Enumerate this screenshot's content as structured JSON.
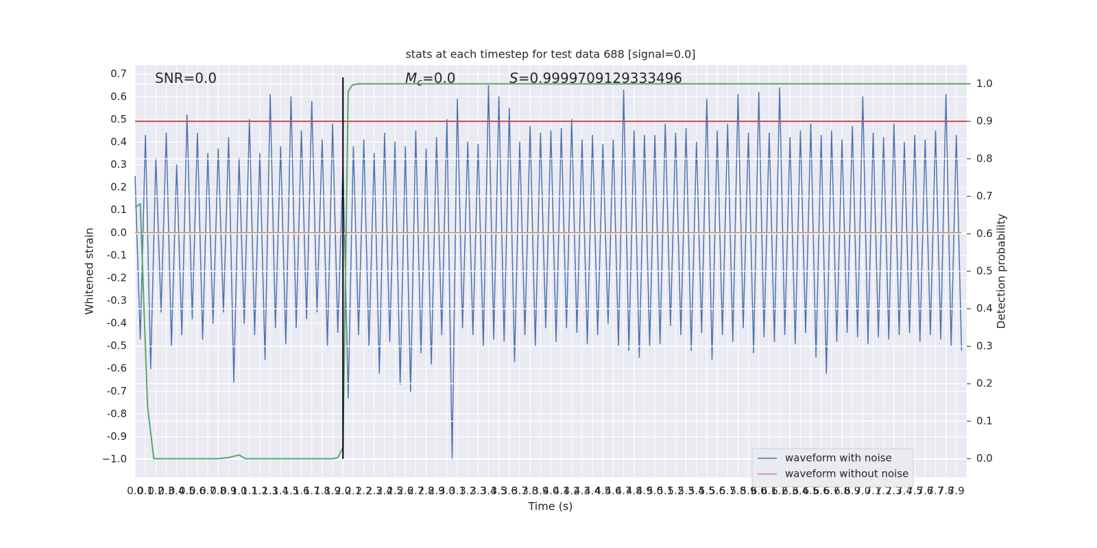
{
  "chart_data": {
    "type": "line",
    "title": "stats at each timestep for test data 688 [signal=0.0]",
    "xlabel": "Time (s)",
    "ylabel": "Whitened strain",
    "y2label": "Detection probability",
    "annotations": [
      {
        "text": "SNR=0.0"
      },
      {
        "symbol": "M",
        "subscript": "c",
        "text": "=0.0"
      },
      {
        "symbol": "S",
        "text": "=0.9999709129333496"
      }
    ],
    "xlim": [
      0,
      8.0
    ],
    "ylim": [
      -1.08,
      0.74
    ],
    "y2lim": [
      -0.05,
      1.05
    ],
    "grid": true,
    "legend": "lower right",
    "xticks": [
      {
        "value": 0,
        "label": "0.0"
      },
      0.1,
      0.2,
      0.3,
      0.4,
      0.5,
      0.6,
      0.7,
      0.8,
      0.9,
      {
        "value": 1,
        "label": "1.0"
      },
      1.1,
      1.2,
      1.3,
      1.4,
      1.5,
      1.6,
      1.7,
      1.8,
      1.9,
      {
        "value": 2,
        "label": "2.0"
      },
      2.1,
      2.2,
      2.3,
      2.4,
      2.5,
      2.6,
      2.7,
      2.8,
      2.9,
      {
        "value": 3,
        "label": "3.0"
      },
      3.1,
      3.2,
      3.3,
      3.4,
      3.5,
      3.6,
      3.7,
      3.8,
      3.9,
      {
        "value": 4,
        "label": "4.0"
      },
      4.1,
      4.2,
      4.3,
      4.4,
      4.5,
      4.6,
      4.7,
      4.8,
      4.9,
      {
        "value": 5,
        "label": "5.0"
      },
      5.1,
      5.2,
      5.3,
      5.4,
      5.5,
      5.6,
      5.7,
      5.8,
      5.9,
      {
        "value": 6,
        "label": "6.0"
      },
      6.1,
      6.2,
      6.3,
      6.4,
      6.5,
      6.6,
      6.7,
      6.8,
      6.9,
      {
        "value": 7,
        "label": "7.0"
      },
      7.1,
      7.2,
      7.3,
      7.4,
      7.5,
      7.6,
      7.7,
      7.8,
      7.9
    ],
    "yticks": [
      0.7,
      0.6,
      0.5,
      0.4,
      0.3,
      0.2,
      0.1,
      {
        "value": 0,
        "label": "0.0"
      },
      -0.1,
      -0.2,
      -0.3,
      -0.4,
      -0.5,
      -0.6,
      -0.7,
      -0.8,
      -0.9,
      {
        "value": -1,
        "label": "−1.0"
      }
    ],
    "y2ticks": [
      {
        "value": 1,
        "label": "1.0"
      },
      0.9,
      0.8,
      0.7,
      0.6,
      0.5,
      0.4,
      0.3,
      0.2,
      0.1,
      {
        "value": 0,
        "label": "0.0"
      }
    ],
    "hlines": [
      {
        "value": 0.9,
        "axis": "y2",
        "color": "#c44e52"
      }
    ],
    "vlines": [
      {
        "value": 2.0,
        "color": "#000000"
      }
    ],
    "series": [
      {
        "name": "waveform with noise",
        "color": "#4c72b0",
        "x": [
          0,
          0.05,
          0.1,
          0.15,
          0.2,
          0.25,
          0.3,
          0.35,
          0.4,
          0.45,
          0.5,
          0.55,
          0.6,
          0.65,
          0.7,
          0.75,
          0.8,
          0.85,
          0.9,
          0.95,
          1,
          1.05,
          1.1,
          1.15,
          1.2,
          1.25,
          1.3,
          1.35,
          1.4,
          1.45,
          1.5,
          1.55,
          1.6,
          1.65,
          1.7,
          1.75,
          1.8,
          1.85,
          1.9,
          1.95,
          2,
          2.05,
          2.1,
          2.15,
          2.2,
          2.25,
          2.3,
          2.35,
          2.4,
          2.45,
          2.5,
          2.55,
          2.6,
          2.65,
          2.7,
          2.75,
          2.8,
          2.85,
          2.9,
          2.95,
          3,
          3.05,
          3.1,
          3.15,
          3.2,
          3.25,
          3.3,
          3.35,
          3.4,
          3.45,
          3.5,
          3.55,
          3.6,
          3.65,
          3.7,
          3.75,
          3.8,
          3.85,
          3.9,
          3.95,
          4,
          4.05,
          4.1,
          4.15,
          4.2,
          4.25,
          4.3,
          4.35,
          4.4,
          4.45,
          4.5,
          4.55,
          4.6,
          4.65,
          4.7,
          4.75,
          4.8,
          4.85,
          4.9,
          4.95,
          5,
          5.05,
          5.1,
          5.15,
          5.2,
          5.25,
          5.3,
          5.35,
          5.4,
          5.45,
          5.5,
          5.55,
          5.6,
          5.65,
          5.7,
          5.75,
          5.8,
          5.85,
          5.9,
          5.95,
          6,
          6.05,
          6.1,
          6.15,
          6.2,
          6.25,
          6.3,
          6.35,
          6.4,
          6.45,
          6.5,
          6.55,
          6.6,
          6.65,
          6.7,
          6.75,
          6.8,
          6.85,
          6.9,
          6.95,
          7,
          7.05,
          7.1,
          7.15,
          7.2,
          7.25,
          7.3,
          7.35,
          7.4,
          7.45,
          7.5,
          7.55,
          7.6,
          7.65,
          7.7,
          7.75,
          7.8,
          7.85,
          7.9,
          7.95
        ],
        "values": [
          0.25,
          -0.47,
          0.43,
          -0.6,
          0.33,
          -0.35,
          0.44,
          -0.5,
          0.3,
          -0.45,
          0.52,
          -0.38,
          0.44,
          -0.47,
          0.35,
          -0.4,
          0.37,
          -0.35,
          0.42,
          -0.66,
          0.33,
          -0.4,
          0.5,
          -0.45,
          0.35,
          -0.56,
          0.61,
          -0.42,
          0.38,
          -0.49,
          0.6,
          -0.42,
          0.45,
          -0.38,
          0.58,
          -0.35,
          0.41,
          -0.5,
          0.48,
          -0.44,
          0.3,
          -0.73,
          0.38,
          -0.45,
          0.41,
          -0.5,
          0.35,
          -0.62,
          0.44,
          -0.48,
          0.4,
          -0.67,
          0.38,
          -0.7,
          0.45,
          -0.53,
          0.37,
          -0.58,
          0.42,
          -0.45,
          0.5,
          -1.0,
          0.59,
          -0.42,
          0.4,
          -0.45,
          0.39,
          -0.5,
          0.65,
          -0.47,
          0.6,
          -0.48,
          0.55,
          -0.57,
          0.4,
          -0.45,
          0.47,
          -0.5,
          0.44,
          -0.42,
          0.45,
          -0.48,
          0.46,
          -0.42,
          0.5,
          -0.44,
          0.41,
          -0.49,
          0.43,
          -0.45,
          0.39,
          -0.4,
          0.41,
          -0.5,
          0.63,
          -0.52,
          0.45,
          -0.55,
          0.43,
          -0.5,
          0.43,
          -0.49,
          0.48,
          -0.41,
          0.44,
          -0.45,
          0.46,
          -0.52,
          0.4,
          -0.44,
          0.59,
          -0.56,
          0.45,
          -0.45,
          0.48,
          -0.48,
          0.61,
          -0.42,
          0.44,
          -0.53,
          0.62,
          -0.46,
          0.44,
          -0.48,
          0.64,
          -0.45,
          0.42,
          -0.49,
          0.45,
          -0.44,
          0.48,
          -0.55,
          0.43,
          -0.62,
          0.45,
          -0.48,
          0.41,
          -0.44,
          0.47,
          -0.46,
          0.6,
          -0.49,
          0.44,
          -0.46,
          0.42,
          -0.47,
          0.48,
          -0.45,
          0.4,
          -0.44,
          0.43,
          -0.48,
          0.41,
          -0.45,
          0.45,
          -0.47,
          0.61,
          -0.5,
          0.43,
          -0.52
        ]
      },
      {
        "name": "waveform without noise",
        "color": "#dd8452",
        "x": [
          0,
          7.95
        ],
        "values": [
          0,
          0
        ]
      },
      {
        "color": "#55a868",
        "axis": "y2",
        "x": [
          0,
          0.05,
          0.12,
          0.18,
          0.5,
          0.8,
          0.9,
          1.0,
          1.06,
          1.2,
          1.5,
          1.9,
          1.95,
          2.0,
          2.05,
          2.09,
          2.15,
          3,
          5,
          8.0
        ],
        "values": [
          0.67,
          0.68,
          0.14,
          0,
          0,
          0,
          0.003,
          0.01,
          0,
          0,
          0,
          0,
          0.003,
          0.03,
          0.98,
          0.997,
          1.0,
          1.0,
          1.0,
          1.0
        ]
      }
    ]
  }
}
